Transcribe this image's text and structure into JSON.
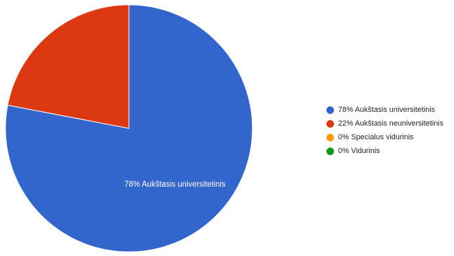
{
  "chart_data": {
    "type": "pie",
    "title": "",
    "categories": [
      "Aukštasis universitetinis",
      "Aukštasis neuniversitetinis",
      "Specialus vidurinis",
      "Vidurinis"
    ],
    "values": [
      78,
      22,
      0,
      0
    ],
    "colors": [
      "#3366cc",
      "#dc3912",
      "#ff9900",
      "#109618"
    ],
    "legend": {
      "position": "right",
      "entries": [
        "78% Aukštasis universitetinis",
        "22% Aukštasis neuniversitetinis",
        "0% Specialus vidurinis",
        "0% Vidurinis"
      ]
    },
    "slice_labels": [
      "78% Aukštasis universitetinis"
    ]
  }
}
